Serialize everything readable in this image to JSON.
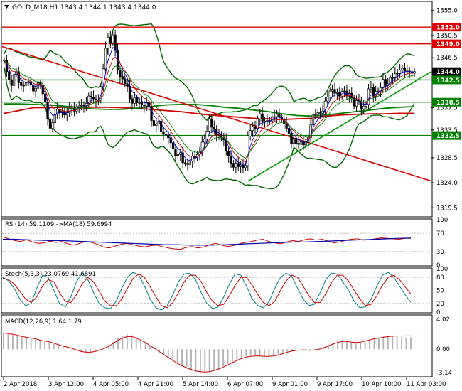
{
  "header": {
    "symbol_line": "GOLD_M18,H1  1343.4 1344.1 1343.4 1344.0"
  },
  "panels": {
    "rsi_label": "RSI(14) 59.1109  ->MA(18) 59.6994",
    "stoch_label": "Stoch(5,3,3) 23.0769 41.6891",
    "macd_label": "MACD(12,26,9) 1.64 1.79"
  },
  "colors": {
    "background": "#ffffff",
    "horizontal_levels": "#e00000",
    "support_levels": "#008000",
    "trendline_red": "#dd0000",
    "trendline_green": "#009900",
    "bollinger": "#006600",
    "ma_red": "#cc0000",
    "ma_green": "#008000",
    "rsi_line": "#cc0000",
    "rsi_ma": "#0000aa",
    "stoch_main": "#008080",
    "stoch_signal": "#cc0000",
    "macd_hist": "#b0b0b0",
    "macd_signal": "#cc0000",
    "price_badge": "#000000"
  },
  "chart_data": [
    {
      "type": "line",
      "title": "GOLD_M18,H1",
      "y_axis_ticks": [
        "1355.0",
        "1350.5",
        "1346.5",
        "1342.5",
        "1337.5",
        "1333.5",
        "1328.5",
        "1324.0",
        "1319.5"
      ],
      "ylim": [
        1318.0,
        1356.5
      ],
      "x_axis_labels": [
        "2 Apr 2018",
        "3 Apr 12:00",
        "4 Apr 05:00",
        "4 Apr 21:00",
        "5 Apr 14:00",
        "6 Apr 07:00",
        "9 Apr 01:00",
        "9 Apr 17:00",
        "10 Apr 10:00",
        "11 Apr 03:00"
      ],
      "price_labels": [
        {
          "text": "1352.0",
          "value": 1352.0,
          "color": "#e00000"
        },
        {
          "text": "1349.0",
          "value": 1349.0,
          "color": "#e00000"
        },
        {
          "text": "1344.0",
          "value": 1344.0,
          "color": "#000000"
        },
        {
          "text": "1342.5",
          "value": 1342.5,
          "color": "#008000"
        },
        {
          "text": "1338.5",
          "value": 1338.5,
          "color": "#008000"
        },
        {
          "text": "1332.5",
          "value": 1332.5,
          "color": "#008000"
        }
      ],
      "horizontal_lines": [
        {
          "value": 1352.0,
          "color": "#e00000"
        },
        {
          "value": 1349.0,
          "color": "#e00000"
        },
        {
          "value": 1342.5,
          "color": "#008000"
        },
        {
          "value": 1338.5,
          "color": "#008000"
        },
        {
          "value": 1332.5,
          "color": "#008000"
        }
      ],
      "close": [
        1346,
        1344,
        1342.5,
        1341.5,
        1343.5,
        1344,
        1342,
        1341.5,
        1341.5,
        1342,
        1342.2,
        1341.6,
        1340.5,
        1341,
        1342,
        1341.5,
        1340,
        1338.5,
        1335.5,
        1333.8,
        1334.8,
        1336.3,
        1337.2,
        1336.6,
        1336.9,
        1336.2,
        1336.6,
        1337.3,
        1337.4,
        1336.9,
        1337.6,
        1337.8,
        1337.9,
        1337.8,
        1338.3,
        1339.6,
        1339.4,
        1339.1,
        1338.9,
        1338.9,
        1341.3,
        1344.5,
        1348.2,
        1350.2,
        1349.2,
        1350.6,
        1347.8,
        1344.3,
        1343.1,
        1342.7,
        1341.8,
        1341.4,
        1339.1,
        1338.3,
        1339.3,
        1338.4,
        1338.4,
        1338,
        1337.8,
        1338.4,
        1337.6,
        1335.2,
        1334.3,
        1334.6,
        1335.1,
        1333.2,
        1332.7,
        1332.6,
        1332.1,
        1331.2,
        1330.1,
        1328.9,
        1329.1,
        1329.4,
        1327.6,
        1327.5,
        1327.3,
        1327.9,
        1328.8,
        1328.5,
        1329.1,
        1329.5,
        1331.3,
        1331.9,
        1333.3,
        1335.5,
        1334,
        1333.6,
        1332.6,
        1332.7,
        1332.1,
        1331.7,
        1329.7,
        1328.8,
        1327.5,
        1326.8,
        1327.5,
        1326.9,
        1327.2,
        1326.7,
        1327.1,
        1332.4,
        1333.4,
        1334.1,
        1333.8,
        1335.5,
        1336.4,
        1335.1,
        1335.1,
        1335.2,
        1335.1,
        1335.9,
        1335.9,
        1336.3,
        1335.8,
        1335.5,
        1334.6,
        1333.8,
        1332.9,
        1331.1,
        1332,
        1331.1,
        1330.9,
        1331.4,
        1330.8,
        1331.3,
        1332.1,
        1334.4,
        1336.3,
        1336.3,
        1336.6,
        1336.5,
        1336.9,
        1338.7,
        1339.4,
        1340.5,
        1340.8,
        1340.1,
        1340.2,
        1339.6,
        1340.4,
        1340.5,
        1339.6,
        1340.1,
        1339.3,
        1337.8,
        1338.8,
        1338.7,
        1337.3,
        1337.8,
        1338.1,
        1340.9,
        1341.1,
        1339.6,
        1340.4,
        1340.5,
        1341.1,
        1342.6,
        1341.5,
        1341.8,
        1342.9,
        1342.9,
        1343.6,
        1343.7,
        1344.3,
        1344.6,
        1344.1,
        1344.1,
        1344,
        1343.7,
        1344
      ],
      "ma_red": [
        1336.5,
        1337,
        1337.5,
        1337.5,
        1337.6,
        1337.6,
        1337.6,
        1337.6,
        1337.5,
        1337.4,
        1337.2,
        1337,
        1336.8,
        1336.5,
        1336.2,
        1336,
        1335.8,
        1335.6,
        1335.5,
        1335.4,
        1335.5,
        1335.6,
        1336,
        1336.2,
        1336.3,
        1336.4,
        1336.4,
        1336.5,
        1336.5
      ],
      "ma_green": [
        1338.2,
        1338.2,
        1338.1,
        1338,
        1337.8,
        1337.6,
        1337.3,
        1337.2,
        1337.2,
        1337.4,
        1337.7,
        1338,
        1338.1,
        1338.1,
        1337.9,
        1337.6,
        1337.4,
        1337.1,
        1336.8,
        1336.4,
        1336.1,
        1336,
        1336.2,
        1336.5,
        1336.8,
        1337.1,
        1337.4,
        1337.6,
        1337.7
      ],
      "annotations": {
        "red_trendline": {
          "from": [
            0,
            1348.5
          ],
          "to": [
            178,
            1324.3
          ],
          "color": "#dd0000"
        },
        "green_trendline": {
          "from": [
            102,
            1324.3
          ],
          "to": [
            178,
            1344.0
          ],
          "color": "#009900"
        }
      }
    },
    {
      "type": "line",
      "title": "RSI(14) 59.1109  ->MA(18) 59.6994",
      "y_axis_ticks": [
        "100",
        "70",
        "30",
        "0"
      ],
      "ylim": [
        0,
        100
      ],
      "series": [
        {
          "name": "RSI(14)",
          "values": [
            62,
            58,
            54,
            52,
            56,
            51,
            48,
            49,
            53,
            50,
            52,
            47,
            44,
            48,
            52,
            50,
            46,
            40,
            38,
            42,
            46,
            48,
            45,
            42,
            40,
            43,
            44,
            41,
            38,
            36,
            35,
            39,
            41,
            38,
            40,
            45,
            48,
            44,
            41,
            43,
            47,
            50,
            52,
            55,
            57,
            52,
            49,
            47,
            51,
            54,
            52,
            56,
            58,
            55,
            57,
            53,
            49,
            51,
            55,
            57,
            58,
            55,
            56,
            58,
            60,
            59,
            58,
            57,
            59,
            59
          ]
        },
        {
          "name": "MA(18)",
          "values": [
            57,
            57,
            56,
            55,
            54,
            54,
            53,
            52,
            51,
            50,
            49,
            48,
            47,
            46,
            45,
            45,
            44,
            44,
            44,
            45,
            46,
            47,
            48,
            49,
            50,
            51,
            51,
            52,
            53,
            54,
            55,
            56,
            57,
            58,
            59,
            59.7
          ]
        }
      ]
    },
    {
      "type": "line",
      "title": "Stoch(5,3,3) 23.0769 41.6891",
      "y_axis_ticks": [
        "100",
        "80",
        "50",
        "20",
        "0"
      ],
      "ylim": [
        0,
        100
      ],
      "series": [
        {
          "name": "main",
          "values": [
            80,
            72,
            55,
            30,
            15,
            20,
            55,
            85,
            80,
            50,
            20,
            12,
            35,
            70,
            90,
            75,
            45,
            20,
            10,
            8,
            25,
            55,
            80,
            92,
            85,
            60,
            30,
            10,
            5,
            15,
            40,
            70,
            88,
            90,
            75,
            45,
            20,
            8,
            12,
            35,
            65,
            88,
            85,
            60,
            30,
            15,
            10,
            25,
            55,
            80,
            90,
            82,
            55,
            30,
            15,
            18,
            45,
            75,
            90,
            88,
            70,
            50,
            25,
            10,
            12,
            30,
            60,
            85,
            92,
            80,
            60,
            40,
            23
          ]
        },
        {
          "name": "signal",
          "values": [
            78,
            75,
            65,
            48,
            30,
            22,
            35,
            60,
            75,
            70,
            45,
            25,
            22,
            40,
            65,
            80,
            70,
            48,
            25,
            15,
            15,
            30,
            55,
            78,
            88,
            80,
            58,
            35,
            15,
            10,
            22,
            45,
            70,
            85,
            85,
            70,
            45,
            25,
            15,
            18,
            38,
            62,
            80,
            80,
            62,
            40,
            22,
            15,
            25,
            50,
            72,
            85,
            80,
            60,
            38,
            22,
            22,
            42,
            68,
            85,
            85,
            72,
            50,
            30,
            15,
            18,
            38,
            62,
            80,
            85,
            75,
            58,
            41.7
          ]
        }
      ]
    },
    {
      "type": "bar",
      "title": "MACD(12,26,9) 1.64 1.79",
      "y_axis_ticks": [
        "4.02",
        "0.00",
        "-3.14"
      ],
      "ylim": [
        -3.6,
        4.5
      ],
      "series": [
        {
          "name": "histogram",
          "values": [
            2.1,
            2.0,
            1.9,
            1.8,
            1.6,
            1.5,
            1.4,
            1.3,
            1.1,
            1.0,
            0.9,
            0.7,
            0.5,
            0.3,
            0.2,
            0.0,
            -0.2,
            -0.4,
            -0.5,
            -0.5,
            -0.3,
            -0.1,
            0.2,
            0.6,
            1.0,
            1.5,
            1.8,
            2.0,
            1.9,
            1.6,
            1.2,
            0.8,
            0.4,
            0.0,
            -0.4,
            -0.8,
            -1.2,
            -1.6,
            -2.0,
            -2.3,
            -2.6,
            -2.8,
            -3.0,
            -3.1,
            -3.1,
            -3.0,
            -2.8,
            -2.6,
            -2.3,
            -2.0,
            -1.7,
            -1.4,
            -1.1,
            -0.9,
            -0.8,
            -0.8,
            -0.9,
            -1.0,
            -1.0,
            -0.9,
            -0.7,
            -0.5,
            -0.3,
            -0.1,
            0.0,
            0.0,
            -0.1,
            -0.2,
            -0.1,
            0.1,
            0.3,
            0.6,
            0.9,
            1.1,
            1.2,
            1.1,
            0.9,
            0.8,
            0.9,
            1.1,
            1.3,
            1.5,
            1.6,
            1.7,
            1.8,
            1.8,
            1.8,
            1.7,
            1.6,
            1.6
          ]
        },
        {
          "name": "signal",
          "values": [
            2.2,
            2.1,
            2.0,
            1.9,
            1.7,
            1.6,
            1.5,
            1.4,
            1.2,
            1.1,
            1.0,
            0.8,
            0.6,
            0.4,
            0.3,
            0.1,
            -0.1,
            -0.3,
            -0.4,
            -0.4,
            -0.3,
            -0.1,
            0.1,
            0.4,
            0.8,
            1.2,
            1.5,
            1.7,
            1.7,
            1.5,
            1.2,
            0.9,
            0.5,
            0.1,
            -0.3,
            -0.7,
            -1.1,
            -1.5,
            -1.9,
            -2.2,
            -2.5,
            -2.7,
            -2.9,
            -3.0,
            -3.05,
            -3.0,
            -2.85,
            -2.65,
            -2.4,
            -2.1,
            -1.8,
            -1.5,
            -1.25,
            -1.05,
            -0.95,
            -0.9,
            -0.9,
            -0.95,
            -0.95,
            -0.9,
            -0.8,
            -0.6,
            -0.4,
            -0.25,
            -0.15,
            -0.1,
            -0.1,
            -0.15,
            -0.1,
            0.0,
            0.2,
            0.45,
            0.7,
            0.9,
            1.05,
            1.05,
            0.95,
            0.9,
            0.95,
            1.1,
            1.25,
            1.4,
            1.5,
            1.6,
            1.7,
            1.75,
            1.78,
            1.78,
            1.79,
            1.79
          ]
        }
      ]
    }
  ]
}
